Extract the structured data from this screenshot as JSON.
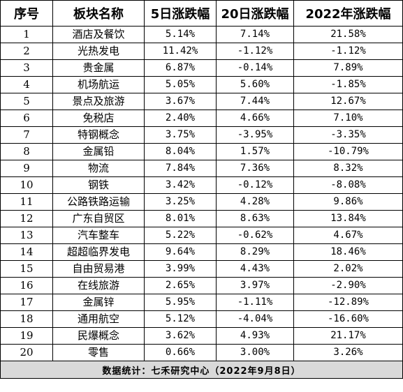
{
  "headers": [
    "序号",
    "板块名称",
    "5日涨跌幅",
    "20日涨跌幅",
    "2022年涨跌幅"
  ],
  "rows": [
    [
      "1",
      "酒店及餐饮",
      "5.14%",
      "7.14%",
      "21.58%"
    ],
    [
      "2",
      "光热发电",
      "11.42%",
      "-1.12%",
      "-1.12%"
    ],
    [
      "3",
      "贵金属",
      "6.87%",
      "-0.14%",
      "7.89%"
    ],
    [
      "4",
      "机场航运",
      "5.05%",
      "5.60%",
      "-1.85%"
    ],
    [
      "5",
      "景点及旅游",
      "3.67%",
      "7.44%",
      "12.67%"
    ],
    [
      "6",
      "免税店",
      "2.40%",
      "4.66%",
      "7.10%"
    ],
    [
      "7",
      "特钢概念",
      "3.75%",
      "-3.95%",
      "-3.35%"
    ],
    [
      "8",
      "金属铅",
      "8.04%",
      "1.57%",
      "-10.79%"
    ],
    [
      "9",
      "物流",
      "7.84%",
      "7.36%",
      "8.32%"
    ],
    [
      "10",
      "钢铁",
      "3.42%",
      "-0.12%",
      "-8.08%"
    ],
    [
      "11",
      "公路铁路运输",
      "3.25%",
      "4.28%",
      "9.86%"
    ],
    [
      "12",
      "广东自贸区",
      "8.01%",
      "8.63%",
      "13.84%"
    ],
    [
      "13",
      "汽车整车",
      "5.22%",
      "-0.62%",
      "4.67%"
    ],
    [
      "14",
      "超超临界发电",
      "9.64%",
      "8.29%",
      "18.46%"
    ],
    [
      "15",
      "自由贸易港",
      "3.99%",
      "4.43%",
      "2.02%"
    ],
    [
      "16",
      "在线旅游",
      "2.65%",
      "3.97%",
      "-2.90%"
    ],
    [
      "17",
      "金属锌",
      "5.95%",
      "-1.11%",
      "-12.89%"
    ],
    [
      "18",
      "通用航空",
      "5.12%",
      "-4.04%",
      "-16.60%"
    ],
    [
      "19",
      "民爆概念",
      "3.62%",
      "4.93%",
      "21.17%"
    ],
    [
      "20",
      "零售",
      "0.66%",
      "3.00%",
      "3.26%"
    ]
  ],
  "footer": "数据统计：七禾研究中心（2022年9月8日）"
}
